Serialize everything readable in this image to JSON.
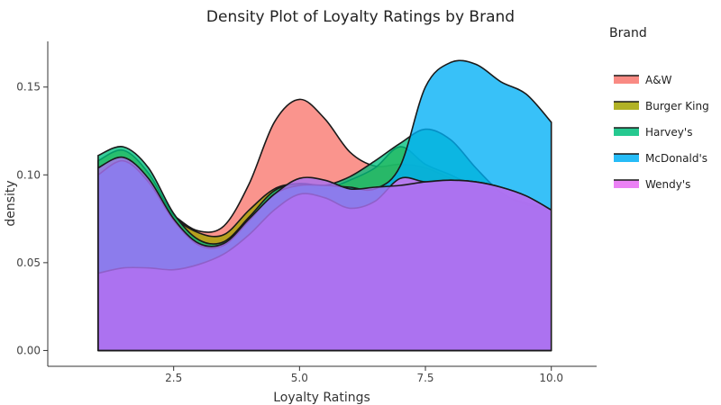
{
  "chart_data": {
    "type": "area",
    "title": "Density Plot of Loyalty Ratings by Brand",
    "xlabel": "Loyalty Ratings",
    "ylabel": "density",
    "xlim": [
      0.0,
      10.9
    ],
    "ylim": [
      -0.009,
      0.176
    ],
    "xticks": [
      2.5,
      5.0,
      7.5,
      10.0
    ],
    "xtick_labels": [
      "2.5",
      "5.0",
      "7.5",
      "10.0"
    ],
    "yticks": [
      0.0,
      0.05,
      0.1,
      0.15
    ],
    "ytick_labels": [
      "0.00",
      "0.05",
      "0.10",
      "0.15"
    ],
    "grid": false,
    "legend": {
      "title": "Brand",
      "position": "right"
    },
    "x": [
      1.0,
      1.5,
      2.0,
      2.5,
      3.0,
      3.5,
      4.0,
      4.5,
      5.0,
      5.5,
      6.0,
      6.5,
      7.0,
      7.5,
      8.0,
      8.5,
      9.0,
      9.5,
      10.0
    ],
    "series": [
      {
        "name": "A&W",
        "color": "#F8766D",
        "values": [
          0.095,
          0.098,
          0.09,
          0.077,
          0.068,
          0.071,
          0.095,
          0.13,
          0.143,
          0.132,
          0.113,
          0.105,
          0.106,
          0.104,
          0.098,
          0.092,
          0.087,
          0.084,
          0.08
        ]
      },
      {
        "name": "Burger King",
        "color": "#A3A500",
        "values": [
          0.108,
          0.114,
          0.101,
          0.077,
          0.067,
          0.066,
          0.08,
          0.092,
          0.095,
          0.092,
          0.097,
          0.104,
          0.116,
          0.106,
          0.1,
          0.093,
          0.088,
          0.084,
          0.08
        ]
      },
      {
        "name": "Harvey's",
        "color": "#00BF7D",
        "values": [
          0.111,
          0.116,
          0.104,
          0.078,
          0.063,
          0.062,
          0.076,
          0.091,
          0.095,
          0.094,
          0.099,
          0.108,
          0.118,
          0.126,
          0.12,
          0.104,
          0.09,
          0.083,
          0.08
        ]
      },
      {
        "name": "McDonald's",
        "color": "#00B0F6",
        "values": [
          0.1,
          0.108,
          0.096,
          0.074,
          0.06,
          0.06,
          0.074,
          0.089,
          0.094,
          0.094,
          0.093,
          0.092,
          0.105,
          0.15,
          0.164,
          0.163,
          0.153,
          0.146,
          0.13
        ]
      },
      {
        "name": "Wendy's",
        "color": "#E76BF3",
        "values": [
          0.044,
          0.047,
          0.047,
          0.046,
          0.049,
          0.055,
          0.066,
          0.08,
          0.089,
          0.087,
          0.081,
          0.085,
          0.098,
          0.096,
          0.097,
          0.096,
          0.093,
          0.088,
          0.08
        ]
      }
    ],
    "overlay_series": {
      "name": "Wendy's",
      "color": "#A970F0",
      "values": [
        0.104,
        0.11,
        0.098,
        0.075,
        0.061,
        0.061,
        0.075,
        0.089,
        0.098,
        0.097,
        0.092,
        0.093,
        0.094,
        0.096,
        0.097,
        0.096,
        0.093,
        0.088,
        0.08
      ]
    }
  }
}
